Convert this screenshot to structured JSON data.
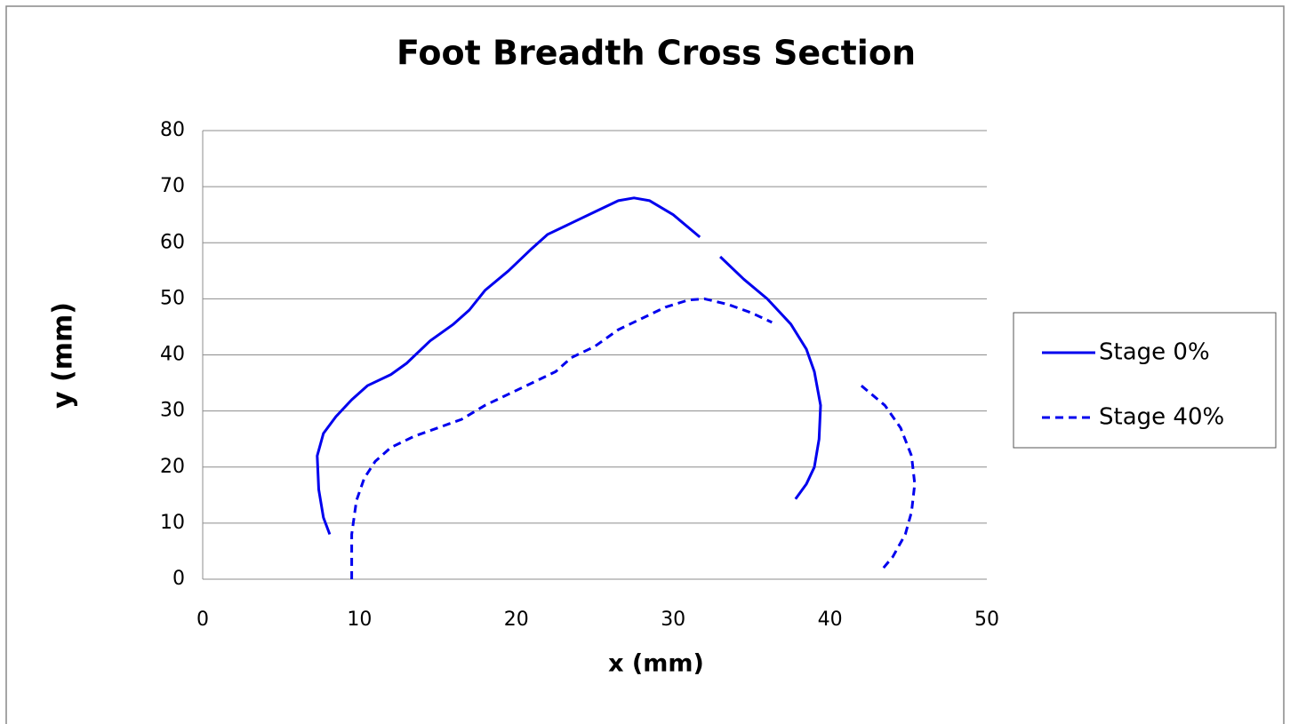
{
  "chart_data": {
    "type": "line",
    "title": "Foot Breadth Cross Section",
    "xlabel": "x (mm)",
    "ylabel": "y (mm)",
    "xlim": [
      0,
      50
    ],
    "xticks": [
      0,
      10,
      20,
      30,
      40,
      50
    ],
    "ylim": [
      0,
      80
    ],
    "yticks": [
      0,
      10,
      20,
      30,
      40,
      50,
      60,
      70,
      80
    ],
    "grid": true,
    "legend": "right",
    "series": [
      {
        "name": "Stage 0%",
        "color": "#0000ee",
        "dash": "solid",
        "x": [
          8.1,
          7.7,
          7.4,
          7.3,
          7.7,
          8.5,
          9.5,
          10.5,
          12,
          13,
          14.5,
          16,
          17,
          18,
          19.5,
          21,
          22,
          23.5,
          25,
          26.5,
          27.5,
          28.5,
          30,
          31.7,
          null,
          33,
          34.5,
          36,
          37.5,
          38.5,
          39,
          39.4,
          39.3,
          39,
          38.5,
          37.8
        ],
        "y": [
          8,
          11,
          16,
          22,
          26,
          29,
          32,
          34.5,
          36.5,
          38.5,
          42.5,
          45.5,
          48,
          51.5,
          55,
          59,
          61.5,
          63.5,
          65.5,
          67.5,
          68,
          67.5,
          65,
          61,
          null,
          57.5,
          53.5,
          50,
          45.5,
          41,
          37,
          31,
          25,
          20,
          17,
          14.3
        ]
      },
      {
        "name": "Stage 40%",
        "color": "#0000ee",
        "dash": "dashed",
        "x": [
          9.5,
          9.5,
          9.8,
          10.3,
          11,
          12,
          13.5,
          15,
          16.5,
          18,
          19.5,
          21,
          22.5,
          23.5,
          25,
          26.5,
          28,
          29.5,
          31,
          32,
          33.5,
          35,
          36.3,
          null,
          42,
          43.5,
          44.5,
          45.2,
          45.4,
          45.2,
          44.8,
          44,
          43.4
        ],
        "y": [
          0,
          8,
          14,
          18,
          21,
          23.5,
          25.5,
          27,
          28.5,
          31,
          33,
          35,
          37,
          39.5,
          41.5,
          44.5,
          46.5,
          48.5,
          49.8,
          50,
          49,
          47.5,
          45.8,
          null,
          34.5,
          31,
          27,
          22,
          17,
          12,
          8,
          4,
          2
        ]
      }
    ]
  }
}
